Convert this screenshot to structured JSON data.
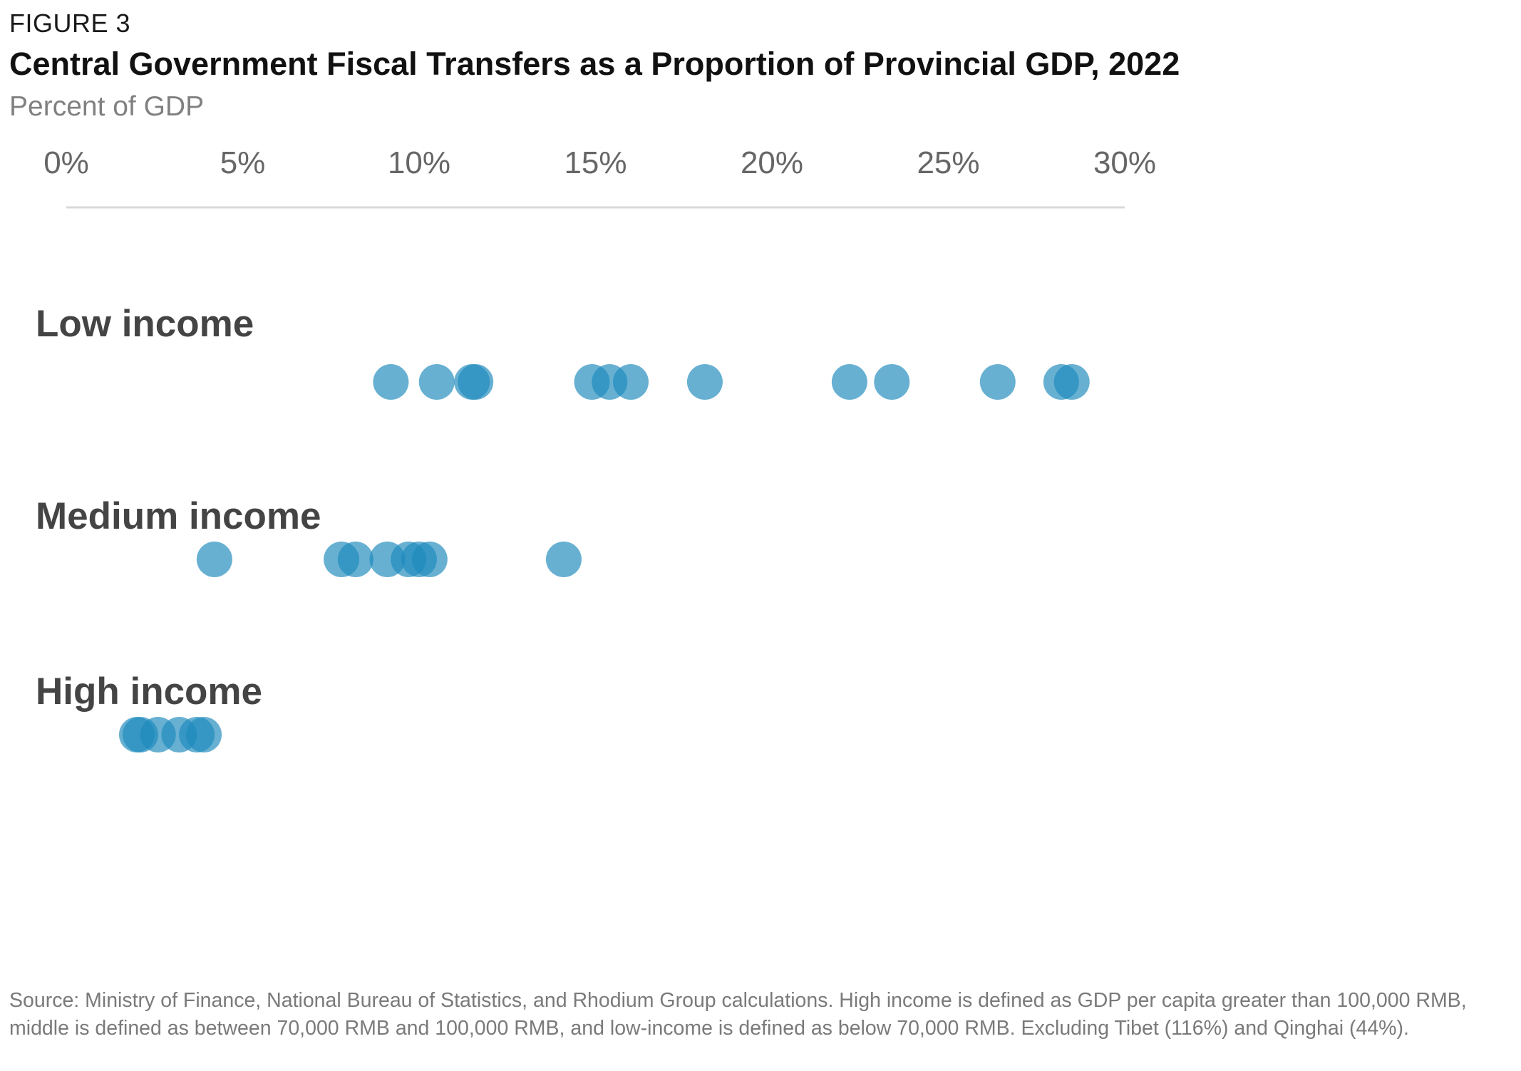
{
  "figure": {
    "label": "FIGURE 3",
    "title": "Central Government Fiscal Transfers as a Proportion of Provincial GDP, 2022",
    "subtitle": "Percent of GDP",
    "source": "Source: Ministry of Finance,  National Bureau of Statistics, and Rhodium Group calculations. High income is defined as GDP per capita greater than 100,000 RMB, middle is defined as between 70,000 RMB and 100,000 RMB, and low-income is defined as below 70,000 RMB. Excluding Tibet (116%) and Qinghai (44%)."
  },
  "colors": {
    "dot": "#1f8bbd",
    "axis_line": "#d9d9d9",
    "tick_label": "#666666",
    "category_label": "#444444"
  },
  "chart_data": {
    "type": "scatter",
    "title": "Central Government Fiscal Transfers as a Proportion of Provincial GDP, 2022",
    "subtitle": "Percent of GDP",
    "x_axis": {
      "ticks": [
        0,
        5,
        10,
        15,
        20,
        25,
        30
      ],
      "tick_labels": [
        "0%",
        "5%",
        "10%",
        "15%",
        "20%",
        "25%",
        "30%"
      ],
      "xlim": [
        0,
        30
      ],
      "position": "top"
    },
    "grid": false,
    "series": [
      {
        "name": "Low income",
        "values": [
          9.2,
          10.5,
          11.5,
          11.6,
          14.9,
          15.4,
          16.0,
          18.1,
          22.2,
          23.4,
          26.4,
          28.2,
          28.5
        ]
      },
      {
        "name": "Medium income",
        "values": [
          4.2,
          7.8,
          8.2,
          9.1,
          9.7,
          10.0,
          10.3,
          14.1
        ]
      },
      {
        "name": "High income",
        "values": [
          2.0,
          2.1,
          2.6,
          3.2,
          3.7,
          3.9
        ]
      }
    ]
  }
}
